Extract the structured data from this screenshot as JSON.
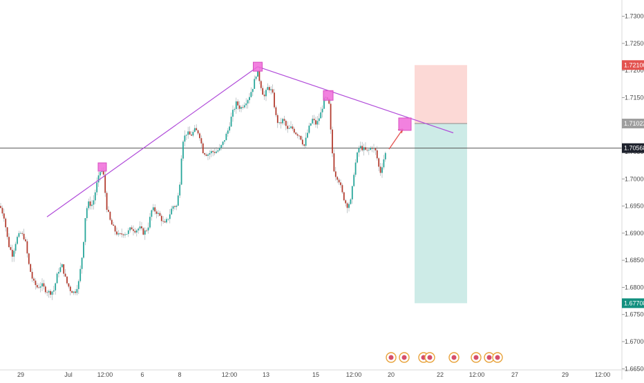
{
  "colors": {
    "up_candle": "#26a69a",
    "down_candle": "#b23b2e",
    "trendline": "#b04ad9",
    "marker": "#f06bd9",
    "arrow": "#e3524f",
    "stop_zone": "#fcd9d6",
    "target_zone": "#cdebe7",
    "current_price_line": "#555555",
    "stop_tag": "#e3524f",
    "entry_tag": "#9e9e9e",
    "current_tag": "#1e222d",
    "target_tag": "#12907f",
    "event_ring": "#e8a23a"
  },
  "chart_data": {
    "type": "candlestick",
    "y_axis": {
      "ticks": [
        "1.73000",
        "1.72500",
        "1.72000",
        "1.71500",
        "1.71000",
        "1.70500",
        "1.70000",
        "1.69500",
        "1.69000",
        "1.68500",
        "1.68000",
        "1.67500",
        "1.67000",
        "1.66500"
      ],
      "range": [
        1.663,
        1.733
      ]
    },
    "x_axis": {
      "ticks": [
        "29",
        "Jul",
        "12:00",
        "6",
        "8",
        "12:00",
        "13",
        "15",
        "12:00",
        "20",
        "22",
        "12:00",
        "27",
        "29",
        "12:00"
      ]
    },
    "price_tags": {
      "stop": "1.72100",
      "entry": "1.71022",
      "current": "1.70568",
      "target": "1.67708"
    },
    "key_points": [
      {
        "label": "start",
        "price": 1.693
      },
      {
        "label": "peak_1",
        "price": 1.7022
      },
      {
        "label": "peak_2",
        "price": 1.7207
      },
      {
        "label": "peak_3",
        "price": 1.7154
      },
      {
        "label": "projected",
        "price": 1.7101
      },
      {
        "label": "end",
        "price": 1.7085
      }
    ],
    "path_points": [
      [
        0,
        1.695
      ],
      [
        6,
        1.693
      ],
      [
        12,
        1.688
      ],
      [
        18,
        1.686
      ],
      [
        24,
        1.689
      ],
      [
        30,
        1.69
      ],
      [
        36,
        1.689
      ],
      [
        42,
        1.684
      ],
      [
        48,
        1.681
      ],
      [
        54,
        1.68
      ],
      [
        60,
        1.6805
      ],
      [
        66,
        1.6795
      ],
      [
        72,
        1.679
      ],
      [
        78,
        1.6795
      ],
      [
        84,
        1.683
      ],
      [
        90,
        1.684
      ],
      [
        96,
        1.681
      ],
      [
        102,
        1.6795
      ],
      [
        108,
        1.679
      ],
      [
        114,
        1.681
      ],
      [
        120,
        1.687
      ],
      [
        124,
        1.694
      ],
      [
        128,
        1.6955
      ],
      [
        134,
        1.6952
      ],
      [
        140,
        1.699
      ],
      [
        146,
        1.7018
      ],
      [
        150,
        1.7005
      ],
      [
        154,
        1.695
      ],
      [
        160,
        1.692
      ],
      [
        166,
        1.6905
      ],
      [
        172,
        1.6895
      ],
      [
        178,
        1.69
      ],
      [
        184,
        1.69
      ],
      [
        190,
        1.691
      ],
      [
        196,
        1.6905
      ],
      [
        202,
        1.691
      ],
      [
        208,
        1.69
      ],
      [
        214,
        1.691
      ],
      [
        220,
        1.6945
      ],
      [
        226,
        1.694
      ],
      [
        232,
        1.693
      ],
      [
        238,
        1.6915
      ],
      [
        244,
        1.693
      ],
      [
        250,
        1.695
      ],
      [
        256,
        1.695
      ],
      [
        260,
        1.699
      ],
      [
        264,
        1.707
      ],
      [
        270,
        1.7085
      ],
      [
        276,
        1.708
      ],
      [
        282,
        1.709
      ],
      [
        288,
        1.7085
      ],
      [
        294,
        1.705
      ],
      [
        300,
        1.7045
      ],
      [
        306,
        1.705
      ],
      [
        312,
        1.705
      ],
      [
        318,
        1.7055
      ],
      [
        324,
        1.707
      ],
      [
        330,
        1.709
      ],
      [
        336,
        1.712
      ],
      [
        342,
        1.714
      ],
      [
        348,
        1.713
      ],
      [
        354,
        1.714
      ],
      [
        360,
        1.715
      ],
      [
        366,
        1.717
      ],
      [
        372,
        1.72
      ],
      [
        376,
        1.718
      ],
      [
        382,
        1.715
      ],
      [
        388,
        1.717
      ],
      [
        394,
        1.716
      ],
      [
        400,
        1.711
      ],
      [
        404,
        1.71
      ],
      [
        410,
        1.711
      ],
      [
        416,
        1.709
      ],
      [
        422,
        1.7095
      ],
      [
        428,
        1.7085
      ],
      [
        434,
        1.708
      ],
      [
        440,
        1.706
      ],
      [
        446,
        1.709
      ],
      [
        452,
        1.711
      ],
      [
        458,
        1.71
      ],
      [
        464,
        1.712
      ],
      [
        470,
        1.715
      ],
      [
        476,
        1.714
      ],
      [
        480,
        1.706
      ],
      [
        484,
        1.701
      ],
      [
        490,
        1.7
      ],
      [
        496,
        1.697
      ],
      [
        502,
        1.695
      ],
      [
        508,
        1.696
      ],
      [
        512,
        1.701
      ],
      [
        516,
        1.704
      ],
      [
        520,
        1.706
      ],
      [
        526,
        1.7055
      ],
      [
        532,
        1.705
      ],
      [
        538,
        1.706
      ],
      [
        544,
        1.705
      ],
      [
        550,
        1.701
      ],
      [
        556,
        1.704
      ],
      [
        560,
        1.7055
      ]
    ]
  }
}
